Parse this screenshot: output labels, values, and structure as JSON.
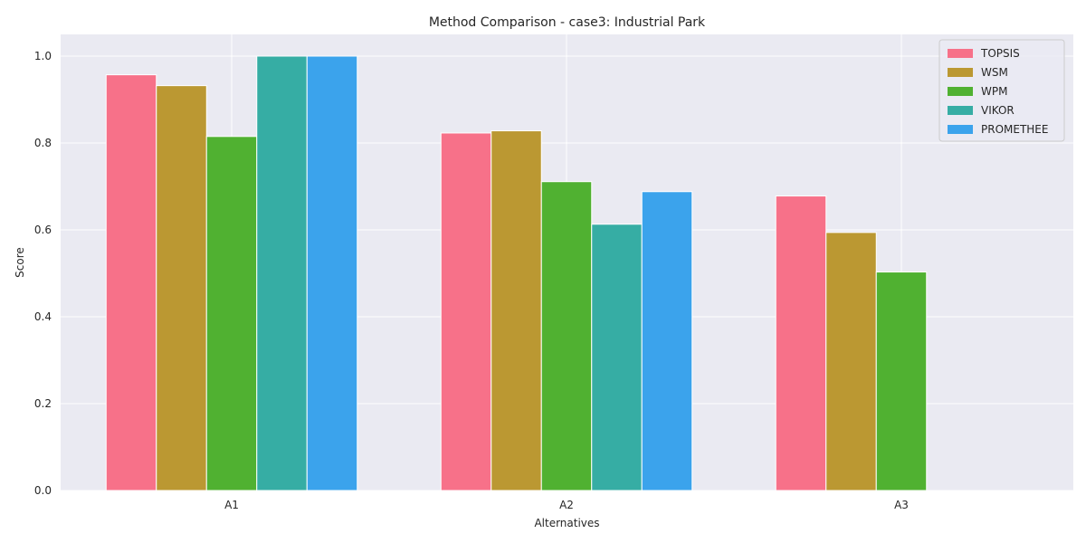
{
  "chart_data": {
    "type": "bar",
    "title": "Method Comparison - case3: Industrial Park",
    "xlabel": "Alternatives",
    "ylabel": "Score",
    "categories": [
      "A1",
      "A2",
      "A3"
    ],
    "ylim": [
      0,
      1.05
    ],
    "yticks": [
      "0.0",
      "0.2",
      "0.4",
      "0.6",
      "0.8",
      "1.0"
    ],
    "grid": true,
    "legend_position": "top-right",
    "series": [
      {
        "name": "TOPSIS",
        "color": "#f77189",
        "values": [
          0.957,
          0.823,
          0.678
        ]
      },
      {
        "name": "WSM",
        "color": "#bb9832",
        "values": [
          0.932,
          0.828,
          0.594
        ]
      },
      {
        "name": "WPM",
        "color": "#50b131",
        "values": [
          0.815,
          0.711,
          0.503
        ]
      },
      {
        "name": "VIKOR",
        "color": "#36ada4",
        "values": [
          1.0,
          0.613,
          0.0
        ]
      },
      {
        "name": "PROMETHEE",
        "color": "#3ba3ec",
        "values": [
          1.0,
          0.688,
          0.0
        ]
      }
    ]
  }
}
